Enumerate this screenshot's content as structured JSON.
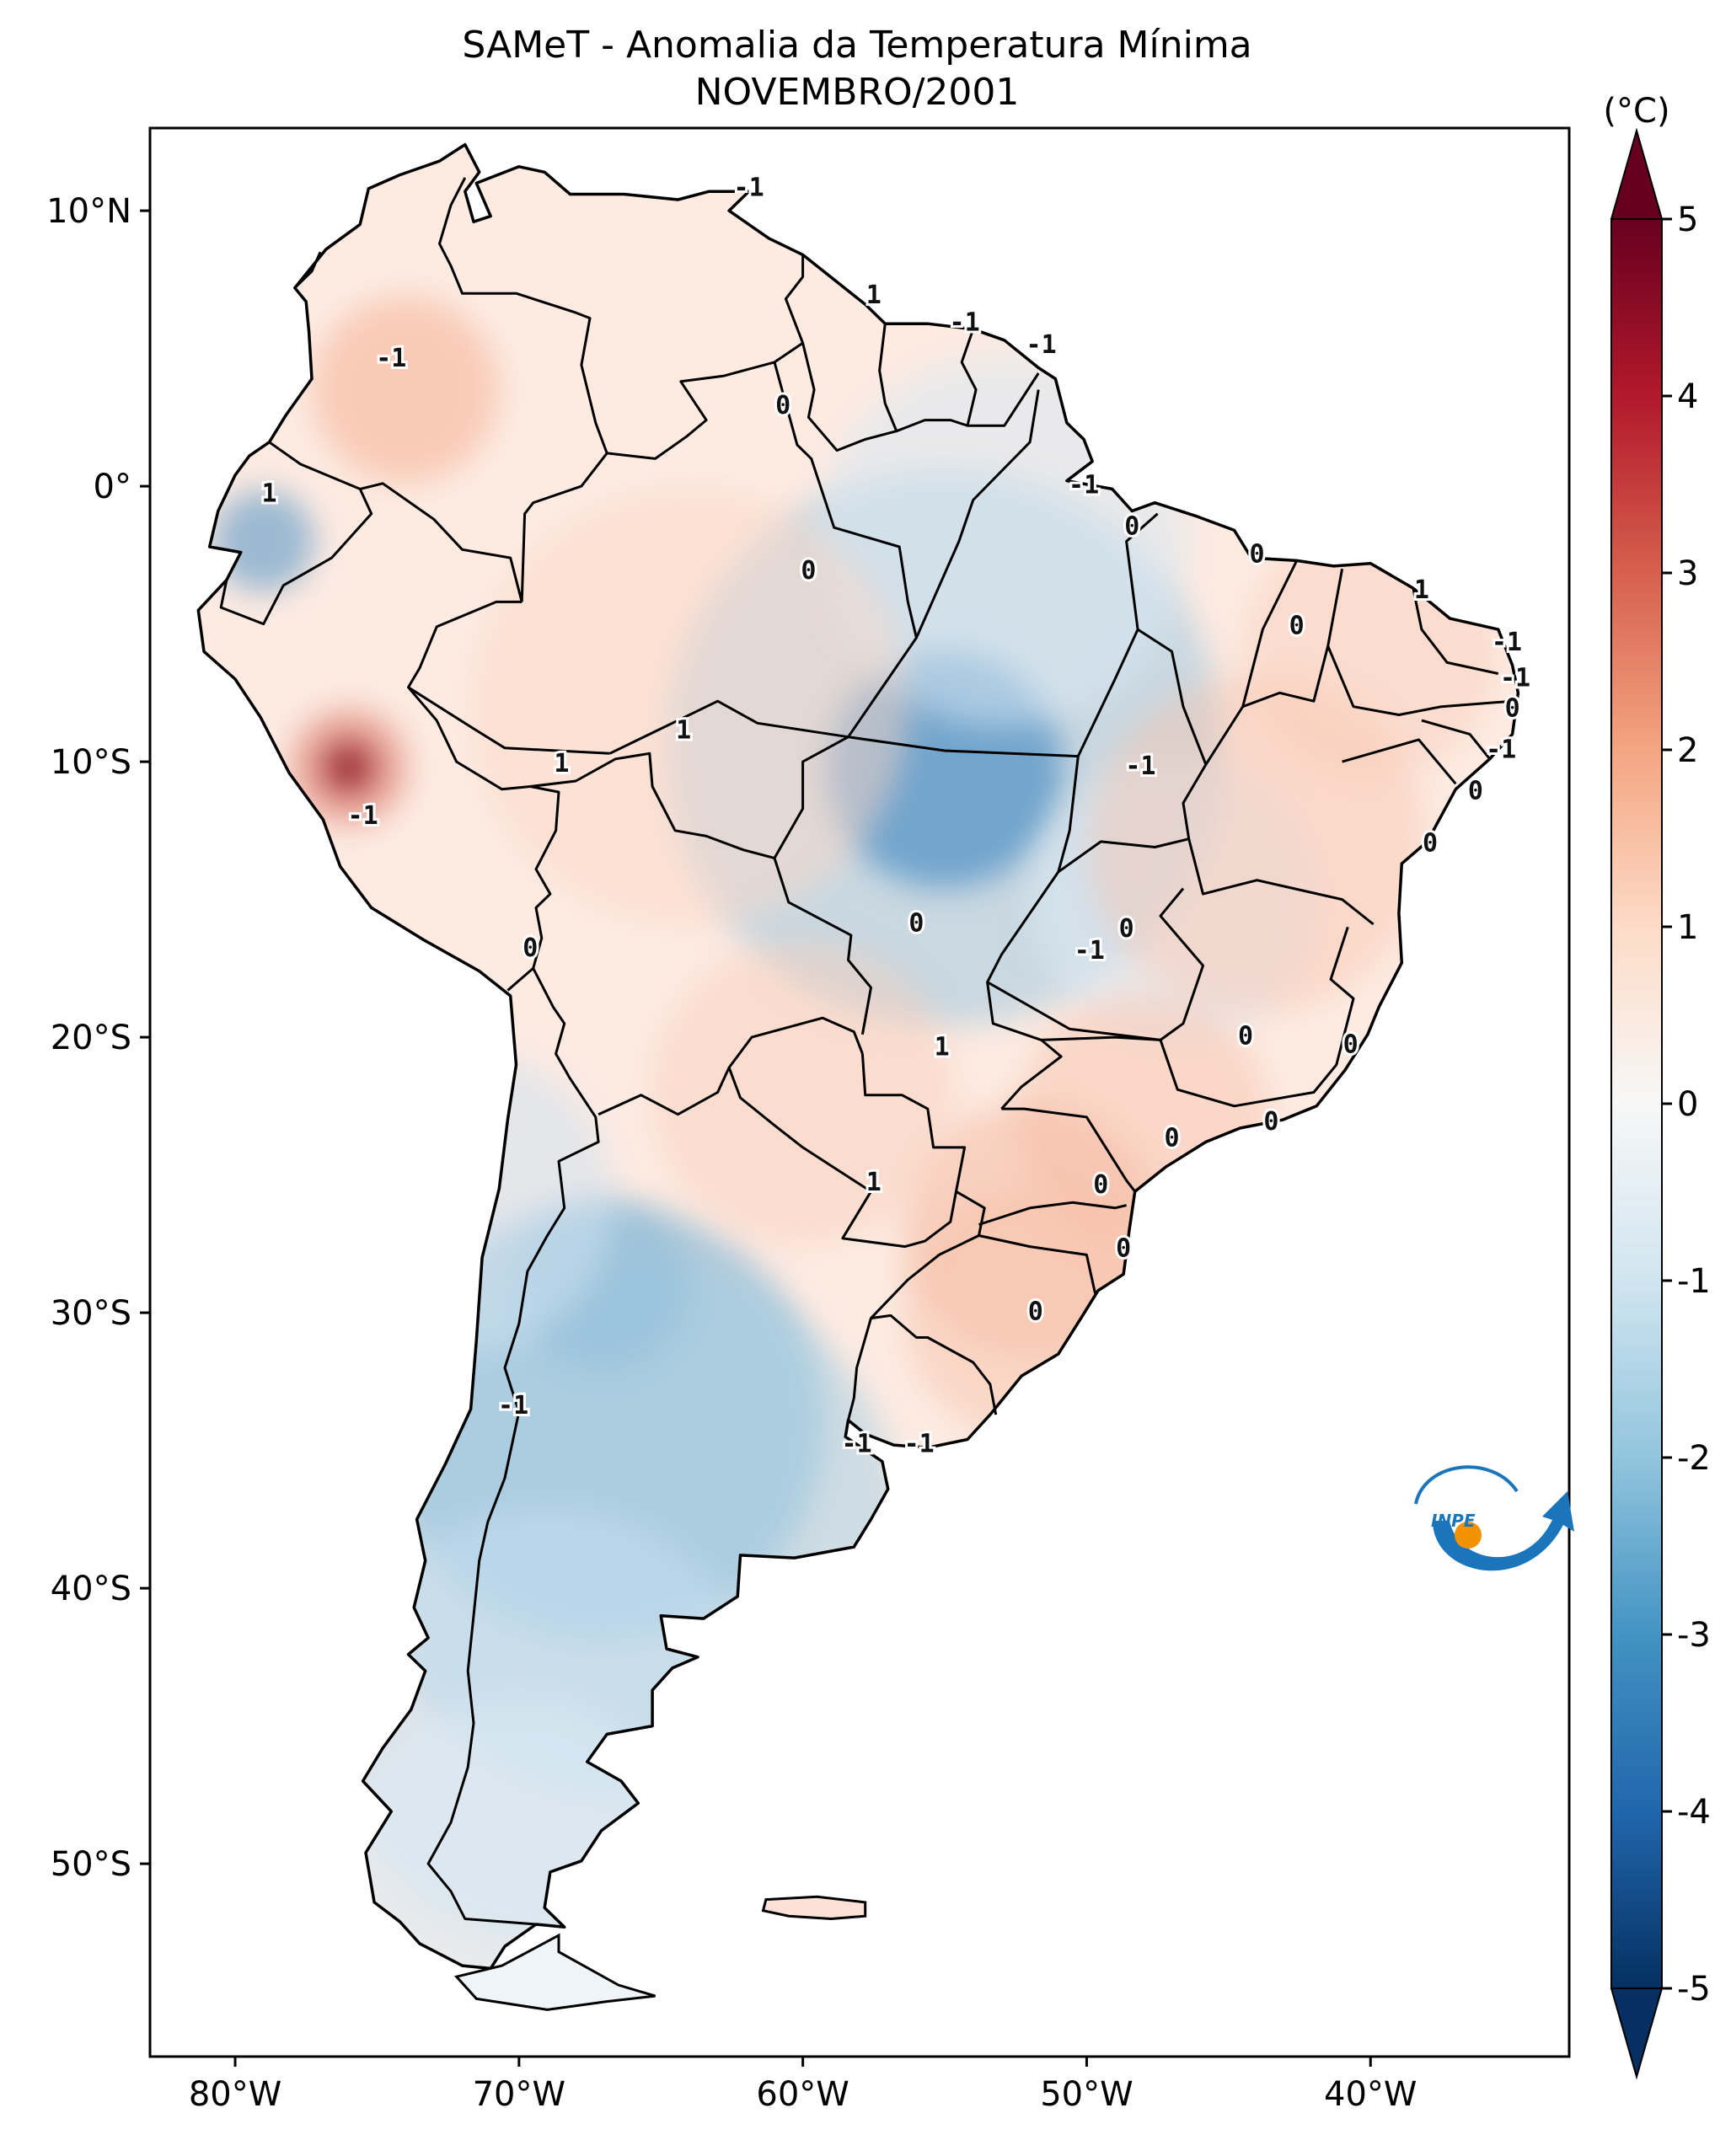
{
  "title": "SAMeT - Anomalia da Temperatura Mínima",
  "subtitle": "NOVEMBRO/2001",
  "colorbar": {
    "unit": "(°C)",
    "ticks": [
      "5",
      "4",
      "3",
      "2",
      "1",
      "0",
      "-1",
      "-2",
      "-3",
      "-4",
      "-5"
    ],
    "min": -5,
    "max": 5,
    "colors": [
      "#053061",
      "#2166ac",
      "#4393c3",
      "#92c5de",
      "#d1e5f0",
      "#f7f7f7",
      "#fddbc7",
      "#f4a582",
      "#d6604d",
      "#b2182b",
      "#67001f"
    ]
  },
  "axes": {
    "lon_labels": [
      "80°W",
      "70°W",
      "60°W",
      "50°W",
      "40°W"
    ],
    "lat_labels": [
      "10°N",
      "0°",
      "10°S",
      "20°S",
      "30°S",
      "40°S",
      "50°S"
    ]
  },
  "contour_labels": [
    {
      "text": "-1",
      "lon": -61.9,
      "lat": 10.8
    },
    {
      "text": "1",
      "lon": -57.5,
      "lat": 6.9
    },
    {
      "text": "-1",
      "lon": -54.3,
      "lat": 5.9
    },
    {
      "text": "-1",
      "lon": -51.6,
      "lat": 5.1
    },
    {
      "text": "-1",
      "lon": -74.5,
      "lat": 4.6
    },
    {
      "text": "0",
      "lon": -60.7,
      "lat": 2.9
    },
    {
      "text": "1",
      "lon": -78.8,
      "lat": -0.3
    },
    {
      "text": "-1",
      "lon": -50.1,
      "lat": 0.0
    },
    {
      "text": "0",
      "lon": -48.4,
      "lat": -1.5
    },
    {
      "text": "0",
      "lon": -59.8,
      "lat": -3.1
    },
    {
      "text": "0",
      "lon": -44.0,
      "lat": -2.5
    },
    {
      "text": "1",
      "lon": -38.2,
      "lat": -3.8
    },
    {
      "text": "0",
      "lon": -42.6,
      "lat": -5.1
    },
    {
      "text": "-1",
      "lon": -35.2,
      "lat": -5.7
    },
    {
      "text": "-1",
      "lon": -34.9,
      "lat": -7.0
    },
    {
      "text": "0",
      "lon": -35.0,
      "lat": -8.1
    },
    {
      "text": "-1",
      "lon": -35.4,
      "lat": -9.6
    },
    {
      "text": "1",
      "lon": -64.2,
      "lat": -8.9
    },
    {
      "text": "1",
      "lon": -68.5,
      "lat": -10.1
    },
    {
      "text": "-1",
      "lon": -48.1,
      "lat": -10.2
    },
    {
      "text": "0",
      "lon": -36.3,
      "lat": -11.1
    },
    {
      "text": "-1",
      "lon": -75.5,
      "lat": -12.0
    },
    {
      "text": "0",
      "lon": -37.9,
      "lat": -13.0
    },
    {
      "text": "0",
      "lon": -56.0,
      "lat": -15.9
    },
    {
      "text": "0",
      "lon": -48.6,
      "lat": -16.1
    },
    {
      "text": "-1",
      "lon": -49.9,
      "lat": -16.9
    },
    {
      "text": "0",
      "lon": -69.6,
      "lat": -16.8
    },
    {
      "text": "0",
      "lon": -44.4,
      "lat": -20.0
    },
    {
      "text": "1",
      "lon": -55.1,
      "lat": -20.4
    },
    {
      "text": "0",
      "lon": -40.7,
      "lat": -20.3
    },
    {
      "text": "0",
      "lon": -43.5,
      "lat": -23.1
    },
    {
      "text": "0",
      "lon": -47.0,
      "lat": -23.7
    },
    {
      "text": "1",
      "lon": -57.5,
      "lat": -25.3
    },
    {
      "text": "0",
      "lon": -49.5,
      "lat": -25.4
    },
    {
      "text": "0",
      "lon": -48.7,
      "lat": -27.7
    },
    {
      "text": "0",
      "lon": -51.8,
      "lat": -30.0
    },
    {
      "text": "-1",
      "lon": -70.2,
      "lat": -33.4
    },
    {
      "text": "-1",
      "lon": -58.1,
      "lat": -34.8
    },
    {
      "text": "-1",
      "lon": -55.9,
      "lat": -34.8
    }
  ],
  "logo": {
    "text": "INPE"
  }
}
